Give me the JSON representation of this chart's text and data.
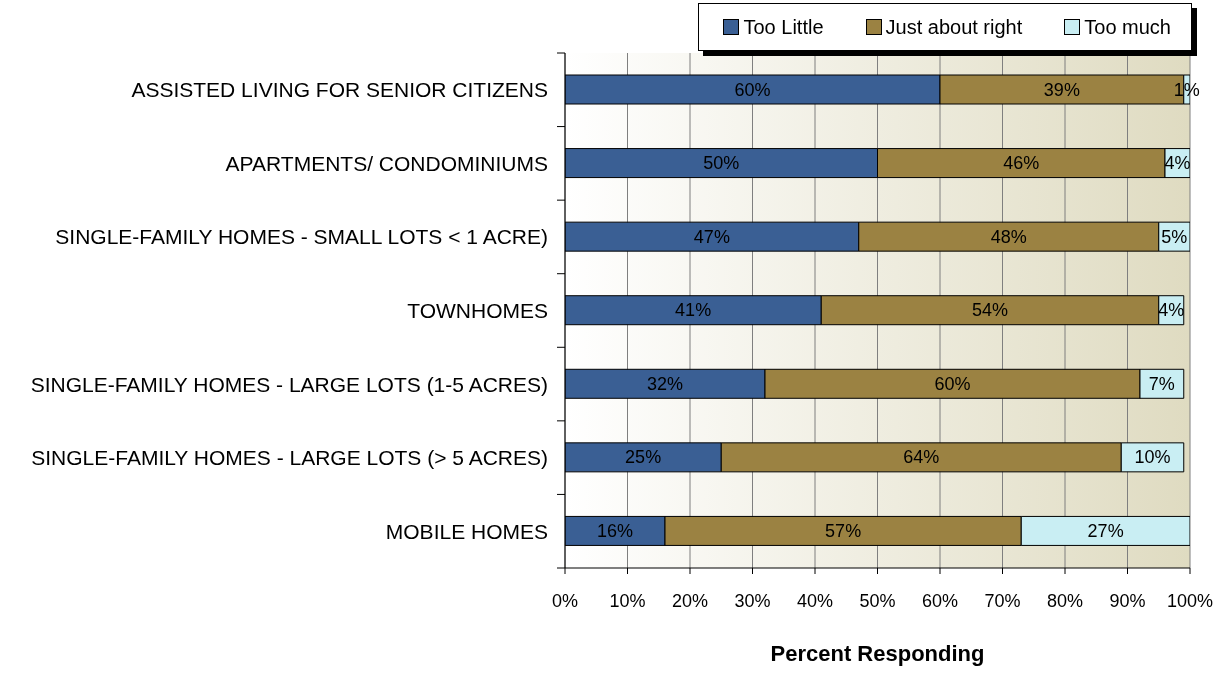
{
  "chart_data": {
    "type": "bar",
    "orientation": "horizontal",
    "stacked": true,
    "categories": [
      "ASSISTED LIVING FOR SENIOR CITIZENS",
      "APARTMENTS/ CONDOMINIUMS",
      "SINGLE-FAMILY HOMES - SMALL LOTS < 1 ACRE)",
      "TOWNHOMES",
      "SINGLE-FAMILY HOMES - LARGE LOTS (1-5 ACRES)",
      "SINGLE-FAMILY HOMES - LARGE LOTS (> 5 ACRES)",
      "MOBILE HOMES"
    ],
    "series": [
      {
        "name": "Too Little",
        "color": "#3a5f94",
        "values": [
          60,
          50,
          47,
          41,
          32,
          25,
          16
        ],
        "value_labels": [
          "60%",
          "50%",
          "47%",
          "41%",
          "32%",
          "25%",
          "16%"
        ]
      },
      {
        "name": "Just about right",
        "color": "#9b8242",
        "values": [
          39,
          46,
          48,
          54,
          60,
          64,
          57
        ],
        "value_labels": [
          "39%",
          "46%",
          "48%",
          "54%",
          "60%",
          "64%",
          "57%"
        ]
      },
      {
        "name": "Too much",
        "color": "#c9eef3",
        "values": [
          1,
          4,
          5,
          4,
          7,
          10,
          27
        ],
        "value_labels": [
          "1%",
          "4%",
          "5%",
          "4%",
          "7%",
          "10%",
          "27%"
        ]
      }
    ],
    "xlim": [
      0,
      100
    ],
    "xticks": [
      {
        "value": 0,
        "label": "0%"
      },
      {
        "value": 10,
        "label": "10%"
      },
      {
        "value": 20,
        "label": "20%"
      },
      {
        "value": 30,
        "label": "30%"
      },
      {
        "value": 40,
        "label": "40%"
      },
      {
        "value": 50,
        "label": "50%"
      },
      {
        "value": 60,
        "label": "60%"
      },
      {
        "value": 70,
        "label": "70%"
      },
      {
        "value": 80,
        "label": "80%"
      },
      {
        "value": 90,
        "label": "90%"
      },
      {
        "value": 100,
        "label": "100%"
      }
    ],
    "xlabel": "Percent Responding",
    "grid": "x",
    "legend": "top right"
  }
}
